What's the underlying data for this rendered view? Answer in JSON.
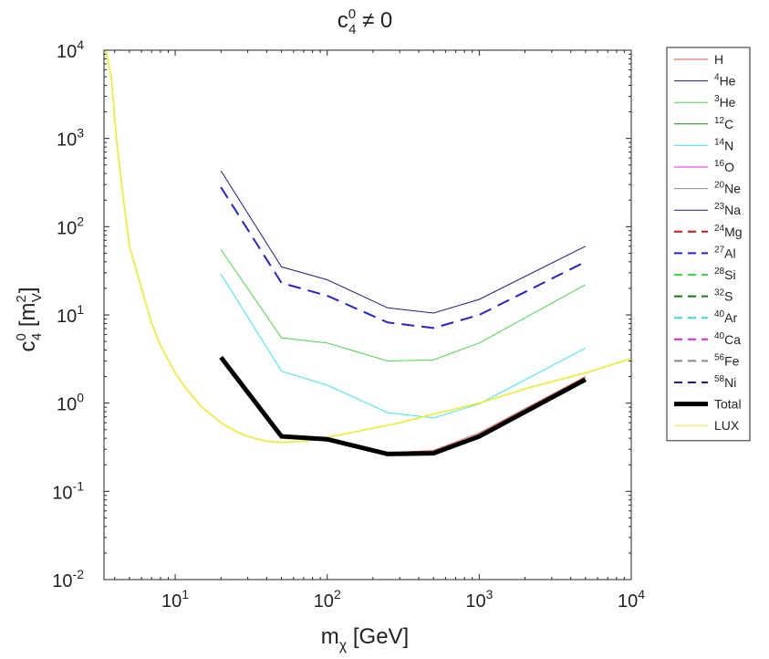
{
  "chart_data": {
    "type": "line",
    "title": {
      "base": "c",
      "sup": "0",
      "sub": "4",
      "rest": " ≠ 0"
    },
    "xlabel": {
      "base": "m",
      "sub": "χ",
      "rest": " [GeV]"
    },
    "ylabel": {
      "base": "c",
      "sup": "0",
      "sub": "4",
      "mid": " [m",
      "msup": "2",
      "msub": "V",
      "end": "]"
    },
    "xscale": "log",
    "yscale": "log",
    "xlim": [
      3.4,
      10000
    ],
    "ylim": [
      0.01,
      10000
    ],
    "xticks": [
      {
        "value": 10,
        "base": "10",
        "exp": "1"
      },
      {
        "value": 100,
        "base": "10",
        "exp": "2"
      },
      {
        "value": 1000,
        "base": "10",
        "exp": "3"
      },
      {
        "value": 10000,
        "base": "10",
        "exp": "4"
      }
    ],
    "yticks": [
      {
        "value": 0.01,
        "base": "10",
        "exp": "-2"
      },
      {
        "value": 0.1,
        "base": "10",
        "exp": "-1"
      },
      {
        "value": 1,
        "base": "10",
        "exp": "0"
      },
      {
        "value": 10,
        "base": "10",
        "exp": "1"
      },
      {
        "value": 100,
        "base": "10",
        "exp": "2"
      },
      {
        "value": 1000,
        "base": "10",
        "exp": "3"
      },
      {
        "value": 10000,
        "base": "10",
        "exp": "4"
      }
    ],
    "legend_position": "outside-right",
    "series": [
      {
        "name": "H",
        "sup": "",
        "label": "H",
        "color": "#e8524a",
        "style": "solid",
        "width": 1,
        "x": [
          20,
          50,
          100,
          250,
          500,
          1000,
          5000
        ],
        "y": [
          3.3,
          0.42,
          0.4,
          0.275,
          0.29,
          0.46,
          2.0
        ]
      },
      {
        "name": "4He",
        "sup": "4",
        "label": "He",
        "color": "#1c1c8c",
        "style": "solid",
        "width": 1,
        "x": [
          20,
          50,
          100,
          250,
          500,
          1000,
          5000
        ],
        "y": [
          430,
          35,
          25,
          12,
          10.5,
          15,
          60
        ]
      },
      {
        "name": "3He",
        "sup": "3",
        "label": "He",
        "color": "#44dd44",
        "style": "solid",
        "width": 1,
        "x": [
          20,
          50,
          100,
          250,
          500,
          1000,
          5000
        ],
        "y": [
          55,
          5.5,
          4.8,
          3.0,
          3.1,
          4.8,
          22
        ]
      },
      {
        "name": "12C",
        "sup": "12",
        "label": "C",
        "color": "#118811",
        "style": "solid",
        "width": 1,
        "x": [],
        "y": []
      },
      {
        "name": "14N",
        "sup": "14",
        "label": "N",
        "color": "#33eeee",
        "style": "solid",
        "width": 1,
        "x": [
          20,
          50,
          100,
          250,
          500,
          1000,
          5000
        ],
        "y": [
          29,
          2.3,
          1.6,
          0.78,
          0.68,
          0.98,
          4.2
        ]
      },
      {
        "name": "16O",
        "sup": "16",
        "label": "O",
        "color": "#ee22ee",
        "style": "solid",
        "width": 1,
        "x": [],
        "y": []
      },
      {
        "name": "20Ne",
        "sup": "20",
        "label": "Ne",
        "color": "#888888",
        "style": "solid",
        "width": 1,
        "x": [],
        "y": []
      },
      {
        "name": "23Na",
        "sup": "23",
        "label": "Na",
        "color": "#1c1c8c",
        "style": "solid",
        "width": 1,
        "x": [],
        "y": []
      },
      {
        "name": "24Mg",
        "sup": "24",
        "label": "Mg",
        "color": "#dd1111",
        "style": "dashed",
        "width": 2,
        "x": [],
        "y": []
      },
      {
        "name": "27Al",
        "sup": "27",
        "label": "Al",
        "color": "#2222dd",
        "style": "dashed",
        "width": 2,
        "x": [
          20,
          50,
          100,
          250,
          500,
          1000,
          5000
        ],
        "y": [
          280,
          23,
          16.5,
          8.2,
          7.1,
          10,
          40
        ]
      },
      {
        "name": "28Si",
        "sup": "28",
        "label": "Si",
        "color": "#33dd33",
        "style": "dashed",
        "width": 2,
        "x": [],
        "y": []
      },
      {
        "name": "32S",
        "sup": "32",
        "label": "S",
        "color": "#117711",
        "style": "dashed",
        "width": 2,
        "x": [],
        "y": []
      },
      {
        "name": "40Ar",
        "sup": "40",
        "label": "Ar",
        "color": "#33dddd",
        "style": "dashed",
        "width": 2,
        "x": [],
        "y": []
      },
      {
        "name": "40Ca",
        "sup": "40",
        "label": "Ca",
        "color": "#dd22dd",
        "style": "dashed",
        "width": 2,
        "x": [],
        "y": []
      },
      {
        "name": "56Fe",
        "sup": "56",
        "label": "Fe",
        "color": "#888888",
        "style": "dashed",
        "width": 2,
        "x": [],
        "y": []
      },
      {
        "name": "58Ni",
        "sup": "58",
        "label": "Ni",
        "color": "#1c1c8c",
        "style": "dashed",
        "width": 2,
        "x": [],
        "y": []
      },
      {
        "name": "Total",
        "sup": "",
        "label": "Total",
        "color": "#000000",
        "style": "solid",
        "width": 5,
        "x": [
          20,
          50,
          100,
          250,
          500,
          1000,
          5000
        ],
        "y": [
          3.3,
          0.42,
          0.39,
          0.265,
          0.27,
          0.42,
          1.85
        ]
      },
      {
        "name": "LUX",
        "sup": "",
        "label": "LUX",
        "color": "#eeee22",
        "style": "solid",
        "width": 1.6,
        "x": [
          3.5,
          3.8,
          4.1,
          4.5,
          5,
          6,
          7,
          8,
          10,
          12,
          15,
          20,
          25,
          30,
          40,
          50,
          70,
          100,
          150,
          200,
          300,
          500,
          700,
          1000,
          2000,
          3000,
          5000,
          10000
        ],
        "y": [
          10000,
          5000,
          1000,
          250,
          60,
          20,
          8,
          4.5,
          2.2,
          1.4,
          0.9,
          0.6,
          0.48,
          0.42,
          0.37,
          0.36,
          0.37,
          0.41,
          0.47,
          0.52,
          0.6,
          0.75,
          0.86,
          1.0,
          1.45,
          1.75,
          2.2,
          3.2
        ]
      }
    ]
  }
}
